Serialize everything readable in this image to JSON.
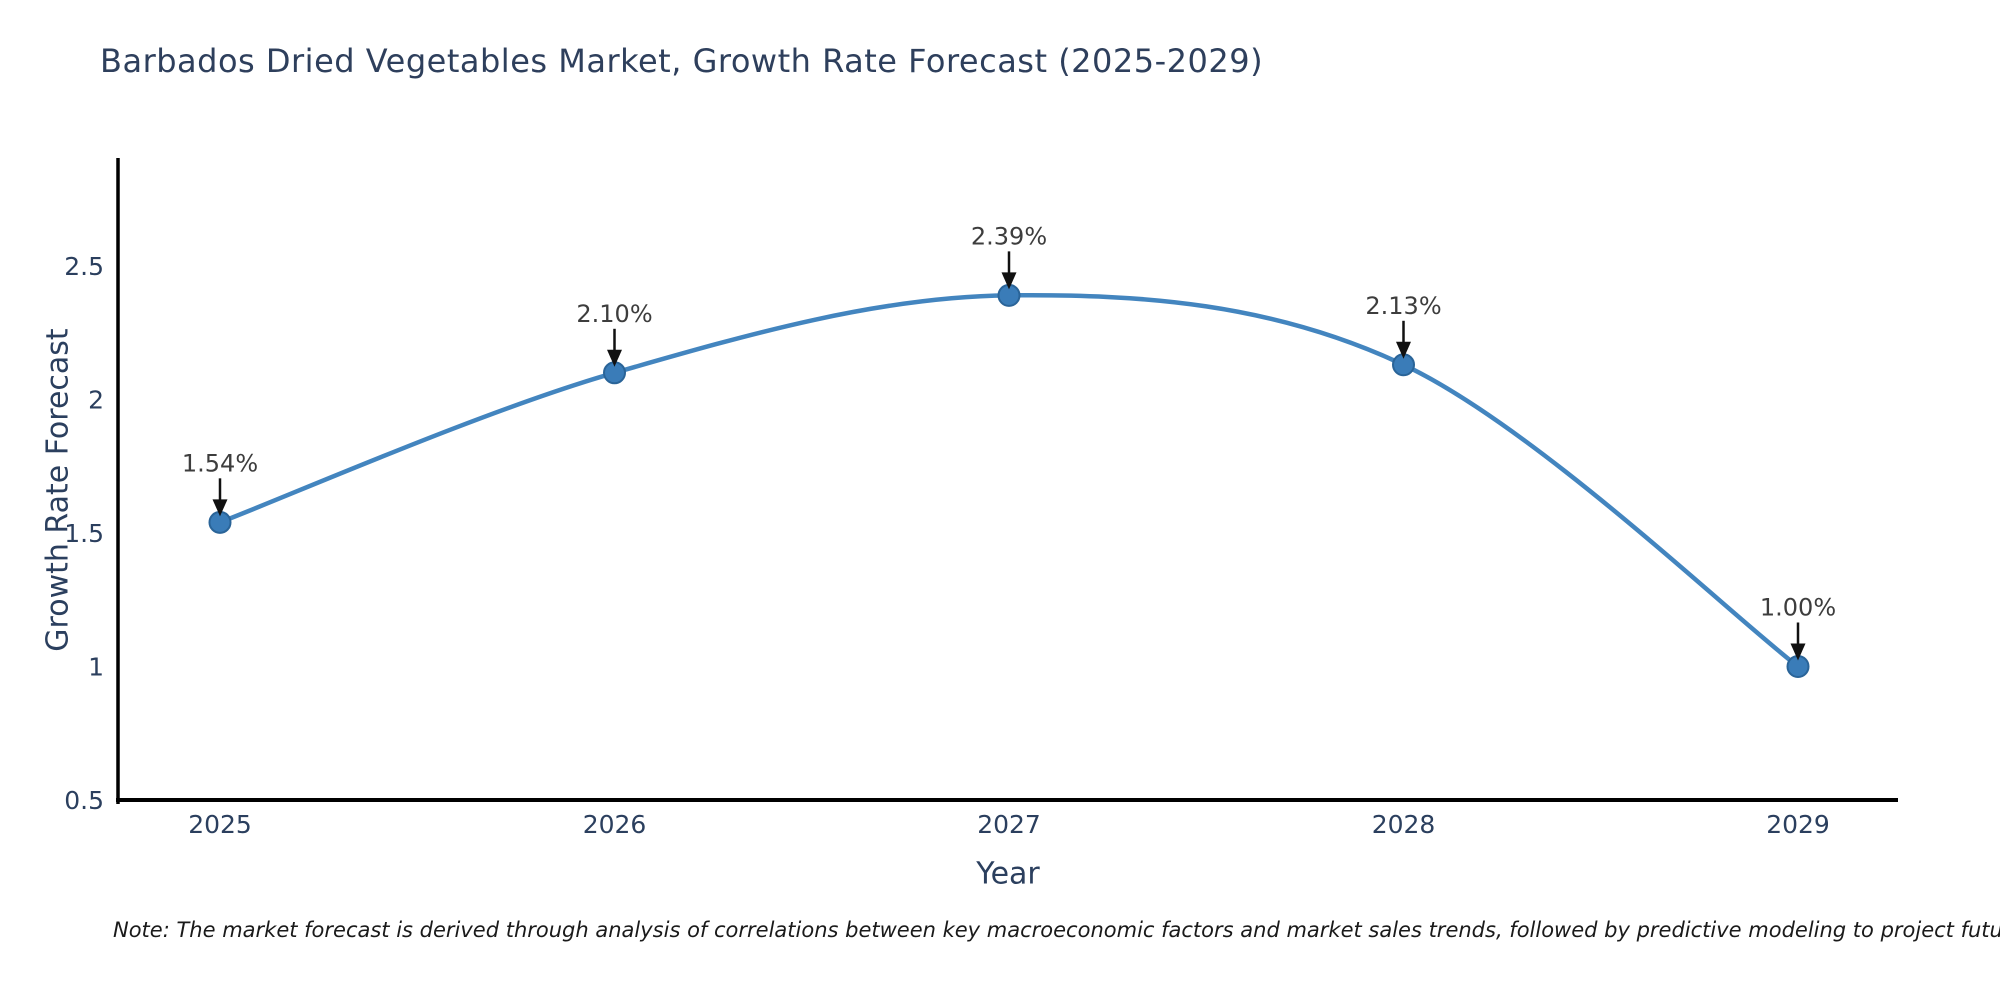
{
  "title": "Barbados Dried Vegetables Market, Growth Rate Forecast (2025-2029)",
  "note": "Note: The market forecast is derived through analysis of correlations between key macroeconomic factors and market sales trends, followed by predictive modeling to project future sales.",
  "chart_data": {
    "type": "line",
    "title": "Barbados Dried Vegetables Market, Growth Rate Forecast (2025-2029)",
    "xlabel": "Year",
    "ylabel": "Growth Rate Forecast",
    "categories": [
      "2025",
      "2026",
      "2027",
      "2028",
      "2029"
    ],
    "series": [
      {
        "name": "Growth Rate Forecast",
        "values": [
          1.54,
          2.1,
          2.39,
          2.13,
          1.0
        ]
      }
    ],
    "data_labels": [
      "1.54%",
      "2.10%",
      "2.39%",
      "2.13%",
      "1.00%"
    ],
    "ytick_values": [
      0.5,
      1,
      1.5,
      2,
      2.5
    ],
    "ytick_labels": [
      "0.5",
      "1",
      "1.5",
      "2",
      "2.5"
    ],
    "ylim": [
      0.5,
      2.9
    ],
    "grid": false,
    "legend": false,
    "line_color": "#4385bf",
    "marker_fill": "#3a7cb8",
    "marker_stroke": "#2a6498",
    "axis_color": "#000000",
    "tick_color": "#2b3f5e",
    "annotation_text_color": "#3d3d3d",
    "arrow_color": "#111111"
  }
}
